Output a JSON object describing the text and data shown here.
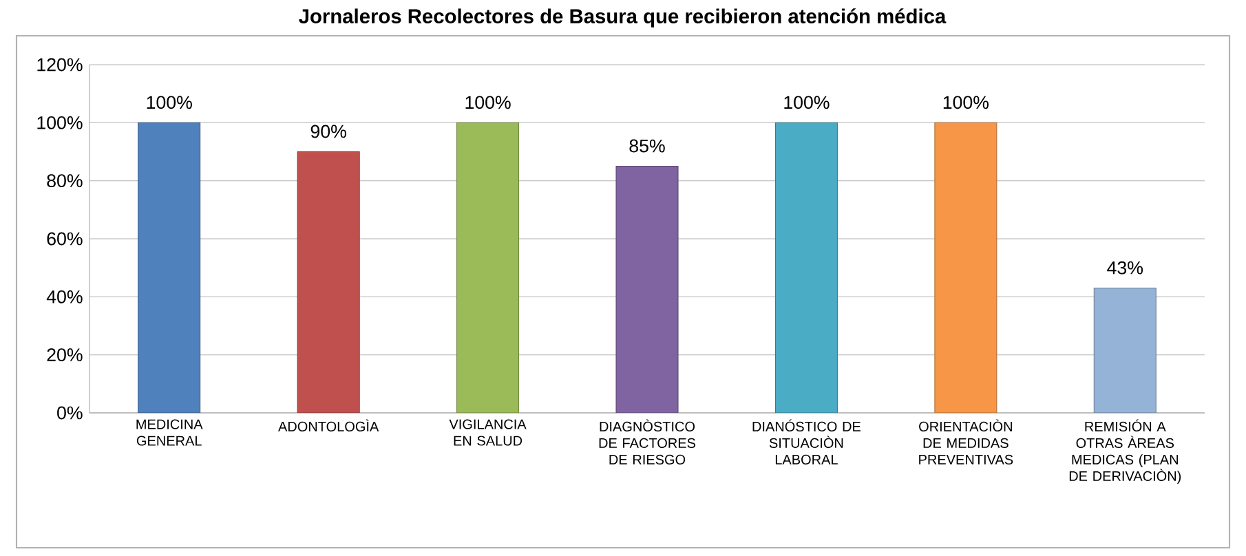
{
  "chart_data": {
    "type": "bar",
    "title": "Jornaleros Recolectores de Basura que recibieron atención  médica",
    "categories": [
      "MEDICINA GENERAL",
      "ADONTOLOGÌA",
      "VIGILANCIA EN SALUD",
      "DIAGNÒSTICO DE FACTORES DE RIESGO",
      "DIANÓSTICO DE SITUACIÒN LABORAL",
      "ORIENTACIÒN DE MEDIDAS PREVENTIVAS",
      "REMISIÓN A OTRAS ÀREAS MEDICAS (PLAN DE DERIVACIÒN)"
    ],
    "values": [
      100,
      90,
      100,
      85,
      100,
      100,
      43
    ],
    "value_labels": [
      "100%",
      "90%",
      "100%",
      "85%",
      "100%",
      "100%",
      "43%"
    ],
    "colors": [
      "#4f81bd",
      "#c0504d",
      "#9bbb59",
      "#8064a2",
      "#4bacc6",
      "#f79646",
      "#95b3d7"
    ],
    "ylim": [
      0,
      120
    ],
    "yticks": [
      {
        "value": 0,
        "label": "0%"
      },
      {
        "value": 20,
        "label": "20%"
      },
      {
        "value": 40,
        "label": "40%"
      },
      {
        "value": 60,
        "label": "60%"
      },
      {
        "value": 80,
        "label": "80%"
      },
      {
        "value": 100,
        "label": "100%"
      },
      {
        "value": 120,
        "label": "120%"
      }
    ],
    "grid": "y"
  }
}
